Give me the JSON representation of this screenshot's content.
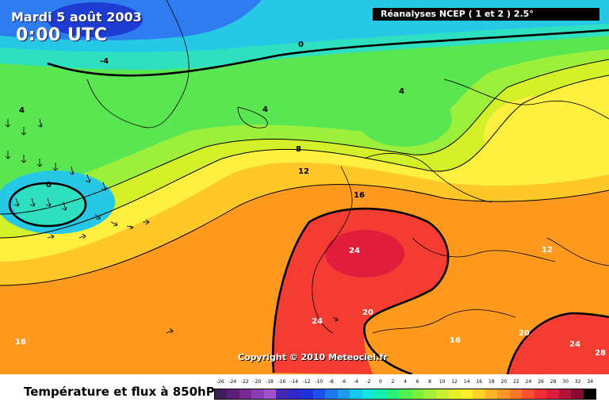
{
  "header": {
    "date": "Mardi 5 août 2003",
    "time": "0:00 UTC",
    "source": "Réanalyses NCEP ( 1 et 2 ) 2.5°"
  },
  "map": {
    "copyright": "Copyright © 2010 Meteociel.fr",
    "isotherm_labels": {
      "l0_top": "0",
      "l_4_top": "-4",
      "l4_greenland": "4",
      "l4_left": "4",
      "l4_scand": "4",
      "l0_cutoff": "0",
      "l8": "8",
      "l12": "12",
      "l16": "16",
      "l24_france": "24",
      "l20_coast": "20",
      "l24_iberia": "24",
      "l16_atlantic": "16",
      "l16_med": "16",
      "l20_med": "20",
      "l12_balkans": "12",
      "l24_east": "24",
      "l28_east": "28"
    },
    "colors": {
      "deep_cold": "#1e3cd2",
      "cold": "#2e7cf0",
      "cyan": "#26c8e6",
      "aqua": "#2ee0c0",
      "green": "#5ae650",
      "light_green": "#9cf03c",
      "yellow_green": "#d4f028",
      "yellow": "#fff040",
      "light_orange": "#ffc828",
      "orange": "#ff9a1e",
      "dark_orange": "#ff7828",
      "red": "#f53c32",
      "dark_red": "#e01e3c",
      "contour": "#000000"
    }
  },
  "footer": {
    "title": "Température et flux à 850hPa"
  },
  "legend": {
    "ticks": [
      "-26",
      "-24",
      "-22",
      "-20",
      "-18",
      "-16",
      "-14",
      "-12",
      "-10",
      "-8",
      "-6",
      "-4",
      "-2",
      "0",
      "2",
      "4",
      "6",
      "8",
      "10",
      "12",
      "14",
      "16",
      "18",
      "20",
      "22",
      "24",
      "26",
      "28",
      "30",
      "32",
      "34"
    ],
    "colors": [
      "#3c1e5a",
      "#5a1e78",
      "#7a2896",
      "#8c3cb4",
      "#a050c8",
      "#4628b4",
      "#3228c8",
      "#1e32dc",
      "#1e50f0",
      "#1e78f0",
      "#1e9cf0",
      "#14c8f0",
      "#14e6dc",
      "#14f0b4",
      "#28f07c",
      "#50f050",
      "#78f03c",
      "#a0f03c",
      "#c8f032",
      "#e6f028",
      "#fff028",
      "#ffd228",
      "#ffb428",
      "#ff9628",
      "#ff7828",
      "#ff5032",
      "#f52d32",
      "#dc1e3c",
      "#b4143c",
      "#8c0a32",
      "#000000"
    ]
  }
}
